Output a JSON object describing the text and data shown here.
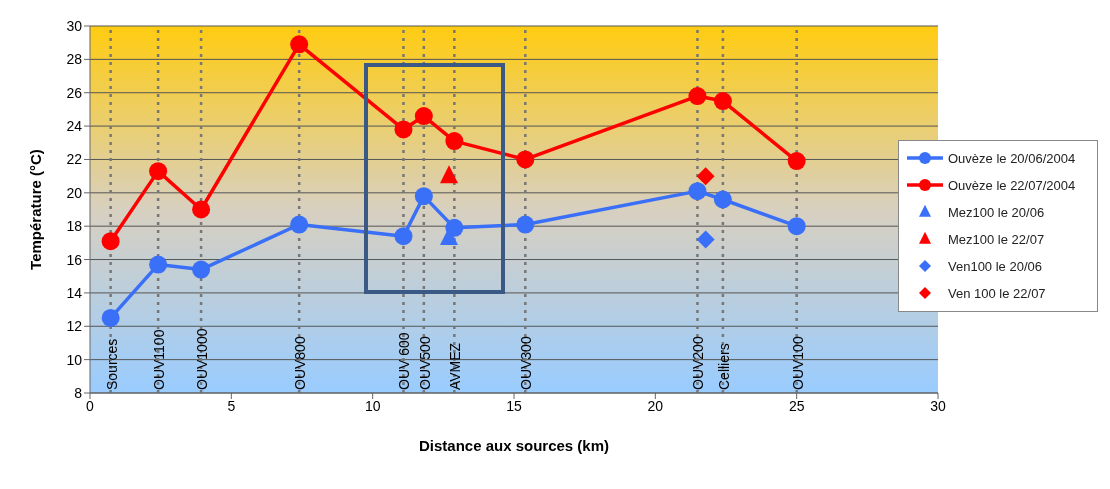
{
  "chart_data": {
    "type": "line",
    "xlabel": "Distance aux sources (km)",
    "ylabel": "Température (°C)",
    "xlim": [
      0,
      30
    ],
    "xticks": [
      0,
      5,
      10,
      15,
      20,
      25,
      30
    ],
    "ylim": [
      8,
      30
    ],
    "yticks": [
      8,
      10,
      12,
      14,
      16,
      18,
      20,
      22,
      24,
      26,
      28,
      30
    ],
    "grid": "y",
    "legend": "right",
    "series": [
      {
        "name": "Ouvèze le 20/06/2004",
        "marker": "circle",
        "color": "#3a6ff7",
        "x": [
          0.73,
          2.41,
          3.93,
          7.4,
          11.09,
          11.81,
          12.89,
          15.4,
          21.49,
          22.39,
          25.0
        ],
        "values": [
          12.5,
          15.7,
          15.4,
          18.1,
          17.4,
          19.8,
          17.9,
          18.1,
          20.1,
          19.6,
          18.0
        ]
      },
      {
        "name": "Ouvèze le 22/07/2004",
        "marker": "circle",
        "color": "#ff0000",
        "x": [
          0.73,
          2.41,
          3.93,
          7.4,
          11.09,
          11.81,
          12.89,
          15.4,
          21.49,
          22.39,
          25.0
        ],
        "values": [
          17.1,
          21.3,
          19.0,
          28.9,
          23.8,
          24.6,
          23.1,
          22.0,
          25.8,
          25.5,
          21.9
        ]
      },
      {
        "name": "Mez100 le 20/06",
        "type": "scatter",
        "marker": "triangle",
        "color": "#3a6ff7",
        "x": [
          12.7
        ],
        "values": [
          17.3
        ]
      },
      {
        "name": "Mez100 le 22/07",
        "type": "scatter",
        "marker": "triangle",
        "color": "#ff0000",
        "x": [
          12.7
        ],
        "values": [
          21.0
        ]
      },
      {
        "name": "Ven100 le 20/06",
        "type": "scatter",
        "marker": "diamond",
        "color": "#3a6ff7",
        "x": [
          21.78
        ],
        "values": [
          17.2
        ]
      },
      {
        "name": "Ven 100 le 22/07",
        "type": "scatter",
        "marker": "diamond",
        "color": "#ff0000",
        "x": [
          21.78
        ],
        "values": [
          21.0
        ]
      }
    ],
    "ref_lines": [
      {
        "axis": "x",
        "value": 0.73,
        "label": "Sources",
        "line_style": "dotted"
      },
      {
        "axis": "x",
        "value": 2.41,
        "label": "OUV1100",
        "line_style": "dotted"
      },
      {
        "axis": "x",
        "value": 3.93,
        "label": "OUV1000",
        "line_style": "dotted"
      },
      {
        "axis": "x",
        "value": 7.4,
        "label": "OUV800",
        "line_style": "dotted"
      },
      {
        "axis": "x",
        "value": 11.09,
        "label": "OUV 600",
        "line_style": "dotted"
      },
      {
        "axis": "x",
        "value": 11.81,
        "label": "OUV500",
        "line_style": "dotted"
      },
      {
        "axis": "x",
        "value": 12.89,
        "label": "AVMEZ",
        "line_style": "dotted"
      },
      {
        "axis": "x",
        "value": 15.4,
        "label": "OUV300",
        "line_style": "dotted"
      },
      {
        "axis": "x",
        "value": 21.49,
        "label": "OUV200",
        "line_style": "dotted"
      },
      {
        "axis": "x",
        "value": 22.39,
        "label": "Celliers",
        "line_style": "dotted"
      },
      {
        "axis": "x",
        "value": 25.0,
        "label": "OUV100",
        "line_style": "dotted"
      }
    ]
  }
}
